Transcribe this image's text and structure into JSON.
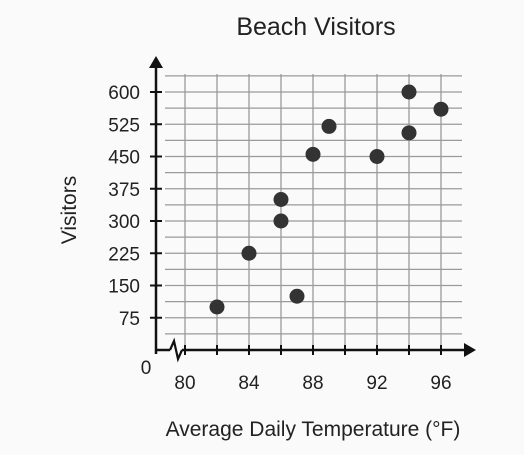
{
  "chart_data": {
    "type": "scatter",
    "title": "Beach Visitors",
    "xlabel": "Average Daily Temperature (°F)",
    "ylabel": "Visitors",
    "origin_label": "0",
    "xlim": [
      78,
      98
    ],
    "ylim": [
      0,
      650
    ],
    "x_axis_break": true,
    "grid": true,
    "x_ticks": [
      80,
      84,
      88,
      92,
      96
    ],
    "x_tick_labels": [
      "80",
      "84",
      "88",
      "92",
      "96"
    ],
    "y_ticks": [
      75,
      150,
      225,
      300,
      375,
      450,
      525,
      600
    ],
    "y_tick_labels": [
      "75",
      "150",
      "225",
      "300",
      "375",
      "450",
      "525",
      "600"
    ],
    "x_grid": [
      80,
      82,
      84,
      86,
      88,
      90,
      92,
      94,
      96
    ],
    "y_grid": [
      37.5,
      75,
      112.5,
      150,
      187.5,
      225,
      262.5,
      300,
      337.5,
      375,
      412.5,
      450,
      487.5,
      525,
      562.5,
      600,
      637.5
    ],
    "series": [
      {
        "points": [
          {
            "x": 82,
            "y": 100
          },
          {
            "x": 84,
            "y": 225
          },
          {
            "x": 86,
            "y": 350
          },
          {
            "x": 86,
            "y": 300
          },
          {
            "x": 87,
            "y": 125
          },
          {
            "x": 88,
            "y": 455
          },
          {
            "x": 89,
            "y": 520
          },
          {
            "x": 92,
            "y": 450
          },
          {
            "x": 94,
            "y": 600
          },
          {
            "x": 94,
            "y": 505
          },
          {
            "x": 96,
            "y": 560
          }
        ]
      }
    ],
    "colors": {
      "point": "#333333",
      "grid": "#9a9a9a",
      "axis": "#111111"
    }
  }
}
